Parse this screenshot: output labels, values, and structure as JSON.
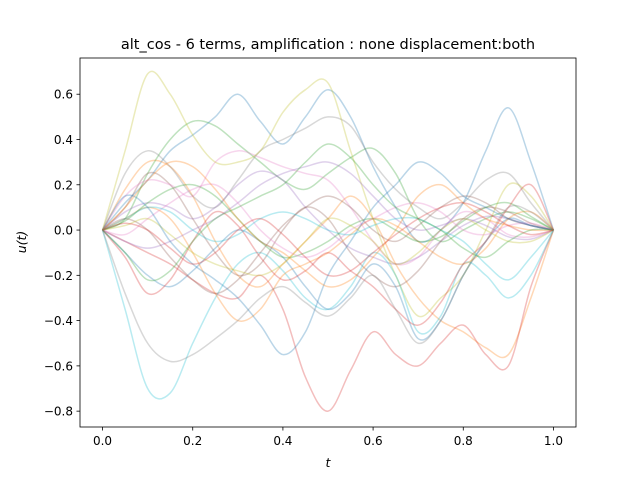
{
  "chart_data": {
    "type": "line",
    "title": "alt_cos - 6 terms, amplification : none displacement:both",
    "xlabel": "t",
    "ylabel": "u(t)",
    "xlim": [
      -0.05,
      1.05
    ],
    "ylim": [
      -0.87,
      0.76
    ],
    "xticks": [
      "0.0",
      "0.2",
      "0.4",
      "0.6",
      "0.8",
      "1.0"
    ],
    "yticks": [
      "−0.8",
      "−0.6",
      "−0.4",
      "−0.2",
      "0.0",
      "0.2",
      "0.4",
      "0.6"
    ],
    "grid": false,
    "legend": "none",
    "x": [
      0.0,
      0.05,
      0.1,
      0.15,
      0.2,
      0.25,
      0.3,
      0.35,
      0.4,
      0.45,
      0.5,
      0.55,
      0.6,
      0.65,
      0.7,
      0.75,
      0.8,
      0.85,
      0.9,
      0.95,
      1.0
    ],
    "series": [
      {
        "color": "#1f77b4",
        "values": [
          0.0,
          0.12,
          0.22,
          0.35,
          0.42,
          0.5,
          0.6,
          0.48,
          0.38,
          0.5,
          0.62,
          0.5,
          0.28,
          0.1,
          -0.05,
          0.0,
          0.12,
          0.35,
          0.54,
          0.3,
          0.0
        ]
      },
      {
        "color": "#ff7f0e",
        "values": [
          0.0,
          0.18,
          0.3,
          0.28,
          0.15,
          -0.05,
          -0.2,
          -0.25,
          -0.15,
          -0.05,
          0.05,
          0.15,
          0.05,
          -0.15,
          -0.3,
          -0.4,
          -0.45,
          -0.52,
          -0.55,
          -0.3,
          0.0
        ]
      },
      {
        "color": "#2ca02c",
        "values": [
          0.0,
          0.05,
          0.25,
          0.4,
          0.48,
          0.46,
          0.38,
          0.3,
          0.22,
          0.18,
          0.25,
          0.32,
          0.36,
          0.25,
          0.05,
          -0.05,
          0.0,
          0.05,
          0.08,
          0.05,
          0.0
        ]
      },
      {
        "color": "#d62728",
        "values": [
          0.0,
          -0.05,
          -0.1,
          -0.15,
          -0.22,
          -0.28,
          -0.3,
          -0.2,
          -0.35,
          -0.65,
          -0.8,
          -0.62,
          -0.45,
          -0.55,
          -0.6,
          -0.5,
          -0.42,
          -0.55,
          -0.6,
          -0.25,
          0.0
        ]
      },
      {
        "color": "#9467bd",
        "values": [
          0.0,
          0.08,
          0.12,
          0.1,
          0.05,
          0.1,
          0.2,
          0.26,
          0.22,
          0.1,
          0.0,
          -0.08,
          -0.12,
          -0.15,
          -0.12,
          -0.05,
          0.02,
          0.06,
          0.05,
          0.02,
          0.0
        ]
      },
      {
        "color": "#8c564b",
        "values": [
          0.0,
          0.1,
          0.25,
          0.2,
          0.05,
          -0.1,
          -0.2,
          -0.15,
          0.0,
          0.1,
          0.05,
          -0.1,
          -0.2,
          -0.25,
          -0.18,
          -0.05,
          0.05,
          0.1,
          0.08,
          0.03,
          0.0
        ]
      },
      {
        "color": "#e377c2",
        "values": [
          0.0,
          0.15,
          0.22,
          0.2,
          0.15,
          0.3,
          0.35,
          0.32,
          0.28,
          0.25,
          0.22,
          0.1,
          -0.05,
          -0.15,
          -0.12,
          0.0,
          0.08,
          0.05,
          -0.02,
          -0.03,
          0.0
        ]
      },
      {
        "color": "#7f7f7f",
        "values": [
          0.0,
          0.25,
          0.35,
          0.28,
          0.15,
          0.1,
          0.22,
          0.35,
          0.4,
          0.45,
          0.5,
          0.46,
          0.3,
          0.18,
          0.1,
          0.05,
          0.12,
          0.22,
          0.25,
          0.12,
          0.0
        ]
      },
      {
        "color": "#bcbd22",
        "values": [
          0.0,
          0.35,
          0.69,
          0.6,
          0.42,
          0.3,
          0.3,
          0.35,
          0.52,
          0.62,
          0.65,
          0.35,
          0.05,
          -0.2,
          -0.38,
          -0.3,
          -0.2,
          0.0,
          0.2,
          0.15,
          0.0
        ]
      },
      {
        "color": "#17becf",
        "values": [
          0.0,
          -0.35,
          -0.7,
          -0.72,
          -0.5,
          -0.3,
          -0.15,
          -0.1,
          -0.18,
          -0.3,
          -0.35,
          -0.25,
          -0.1,
          -0.2,
          -0.45,
          -0.38,
          -0.15,
          -0.2,
          -0.3,
          -0.2,
          0.0
        ]
      },
      {
        "color": "#1f77b4",
        "values": [
          0.0,
          -0.1,
          -0.2,
          -0.25,
          -0.18,
          -0.08,
          0.0,
          -0.05,
          -0.12,
          -0.25,
          -0.35,
          -0.28,
          -0.15,
          -0.25,
          -0.48,
          -0.4,
          -0.2,
          -0.05,
          0.05,
          0.02,
          0.0
        ]
      },
      {
        "color": "#ff7f0e",
        "values": [
          0.0,
          0.05,
          0.1,
          0.05,
          -0.1,
          -0.28,
          -0.4,
          -0.35,
          -0.2,
          -0.15,
          -0.1,
          -0.02,
          0.05,
          0.02,
          -0.05,
          -0.12,
          -0.15,
          -0.08,
          0.05,
          0.08,
          0.0
        ]
      },
      {
        "color": "#2ca02c",
        "values": [
          0.0,
          0.04,
          0.12,
          0.18,
          0.2,
          0.15,
          0.05,
          -0.05,
          -0.12,
          -0.1,
          -0.05,
          0.02,
          0.05,
          0.0,
          -0.05,
          -0.03,
          0.04,
          0.1,
          0.12,
          0.06,
          0.0
        ]
      },
      {
        "color": "#d62728",
        "values": [
          0.0,
          -0.12,
          -0.28,
          -0.22,
          -0.05,
          0.08,
          0.02,
          -0.12,
          -0.22,
          -0.18,
          -0.1,
          -0.18,
          -0.25,
          -0.35,
          -0.42,
          -0.32,
          -0.15,
          -0.05,
          0.1,
          0.2,
          0.0
        ]
      },
      {
        "color": "#9467bd",
        "values": [
          0.0,
          -0.05,
          -0.08,
          -0.05,
          0.0,
          0.05,
          0.12,
          0.2,
          0.25,
          0.28,
          0.3,
          0.25,
          0.15,
          0.05,
          0.0,
          0.02,
          0.05,
          0.02,
          -0.03,
          -0.04,
          0.0
        ]
      },
      {
        "color": "#8c564b",
        "values": [
          0.0,
          0.05,
          0.0,
          -0.12,
          -0.22,
          -0.28,
          -0.22,
          -0.1,
          0.02,
          0.1,
          0.15,
          0.1,
          0.0,
          -0.05,
          0.02,
          0.1,
          0.15,
          0.12,
          0.05,
          0.02,
          0.0
        ]
      },
      {
        "color": "#e377c2",
        "values": [
          0.0,
          -0.02,
          0.05,
          0.12,
          0.18,
          0.2,
          0.12,
          0.0,
          -0.08,
          -0.12,
          -0.08,
          0.0,
          0.05,
          0.1,
          0.12,
          0.08,
          0.0,
          -0.02,
          0.02,
          0.03,
          0.0
        ]
      },
      {
        "color": "#7f7f7f",
        "values": [
          0.0,
          -0.28,
          -0.5,
          -0.58,
          -0.55,
          -0.48,
          -0.4,
          -0.3,
          -0.25,
          -0.32,
          -0.38,
          -0.3,
          -0.2,
          -0.35,
          -0.5,
          -0.4,
          -0.2,
          -0.05,
          0.1,
          0.08,
          0.0
        ]
      },
      {
        "color": "#bcbd22",
        "values": [
          0.0,
          0.02,
          0.05,
          -0.02,
          -0.1,
          -0.15,
          -0.18,
          -0.2,
          -0.15,
          -0.05,
          0.05,
          0.02,
          -0.05,
          -0.15,
          -0.1,
          0.0,
          0.05,
          0.0,
          -0.05,
          -0.05,
          0.0
        ]
      },
      {
        "color": "#17becf",
        "values": [
          0.0,
          0.05,
          0.1,
          0.08,
          0.0,
          -0.05,
          -0.02,
          0.05,
          0.08,
          0.05,
          0.0,
          -0.02,
          0.02,
          0.05,
          0.05,
          0.0,
          -0.05,
          -0.15,
          -0.22,
          -0.12,
          0.0
        ]
      },
      {
        "color": "#1f77b4",
        "values": [
          0.0,
          0.15,
          0.1,
          -0.05,
          -0.15,
          -0.22,
          -0.3,
          -0.42,
          -0.55,
          -0.45,
          -0.2,
          -0.05,
          0.1,
          0.2,
          0.3,
          0.25,
          0.15,
          0.1,
          0.05,
          0.02,
          0.0
        ]
      },
      {
        "color": "#ff7f0e",
        "values": [
          0.0,
          0.1,
          0.22,
          0.3,
          0.28,
          0.18,
          0.05,
          -0.05,
          -0.1,
          -0.18,
          -0.25,
          -0.22,
          -0.12,
          0.0,
          0.15,
          0.2,
          0.12,
          0.05,
          0.02,
          0.0,
          0.0
        ]
      },
      {
        "color": "#2ca02c",
        "values": [
          0.0,
          -0.1,
          -0.22,
          -0.18,
          -0.05,
          0.05,
          0.1,
          0.15,
          0.2,
          0.3,
          0.38,
          0.32,
          0.2,
          0.1,
          0.05,
          0.0,
          -0.08,
          -0.12,
          -0.05,
          0.0,
          0.0
        ]
      },
      {
        "color": "#d62728",
        "values": [
          0.0,
          0.03,
          0.0,
          -0.08,
          -0.15,
          -0.1,
          0.0,
          0.05,
          -0.02,
          -0.12,
          -0.2,
          -0.18,
          -0.1,
          -0.02,
          0.05,
          0.1,
          0.12,
          0.08,
          0.02,
          -0.02,
          0.0
        ]
      }
    ]
  }
}
